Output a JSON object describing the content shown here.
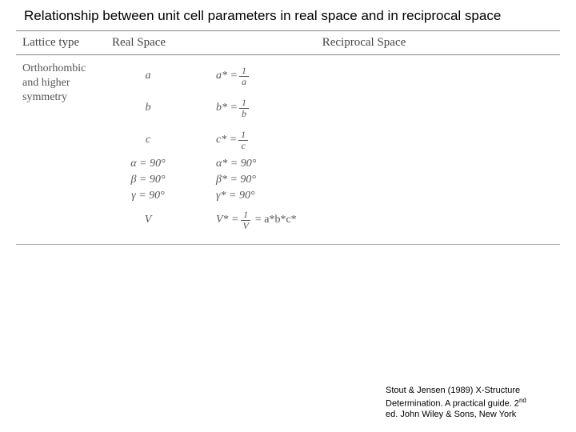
{
  "title": "Relationship between unit cell parameters in real space and in reciprocal space",
  "headers": {
    "lattice": "Lattice type",
    "real": "Real Space",
    "recip": "Reciprocal Space"
  },
  "lattice_label_l1": "Orthorhombic",
  "lattice_label_l2": "and higher",
  "lattice_label_l3": "symmetry",
  "real": {
    "a": "a",
    "b": "b",
    "c": "c",
    "alpha": "α = 90°",
    "beta": "β = 90°",
    "gamma": "γ = 90°",
    "V": "V"
  },
  "recip": {
    "a_lhs": "a* =",
    "a_num": "1",
    "a_den": "a",
    "b_lhs": "b* =",
    "b_num": "1",
    "b_den": "b",
    "c_lhs": "c* =",
    "c_num": "1",
    "c_den": "c",
    "alpha": "α* = 90°",
    "beta": "β* = 90°",
    "gamma": "γ* = 90°",
    "V_lhs": "V* =",
    "V_num": "1",
    "V_den": "V",
    "V_rhs": "= a*b*c*"
  },
  "citation_l1": "Stout & Jensen (1989) X-Structure",
  "citation_l2a": "Determination. A practical guide. 2",
  "citation_l2b": "nd",
  "citation_l3": "ed. John Wiley & Sons, New York"
}
